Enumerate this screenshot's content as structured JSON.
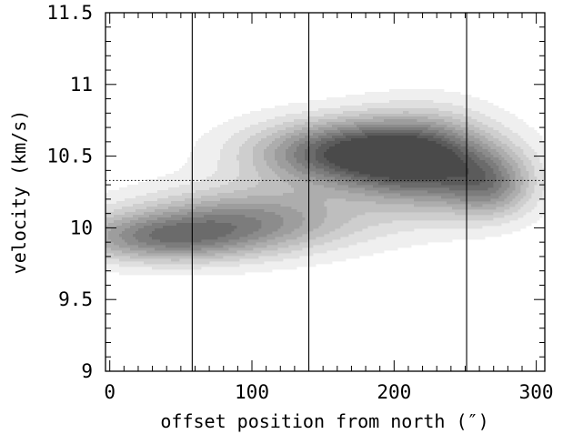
{
  "chart_data": {
    "type": "contour",
    "xlabel": "offset position from north (″)",
    "ylabel": "velocity (km/s)",
    "xlim": [
      -3,
      306
    ],
    "ylim": [
      9.0,
      11.5
    ],
    "x_ticks": [
      0,
      100,
      200,
      300
    ],
    "x_tick_labels": [
      "0",
      "100",
      "200",
      "300"
    ],
    "x_minor_step": 10,
    "y_ticks": [
      9.0,
      9.5,
      10.0,
      10.5,
      11.0,
      11.5
    ],
    "y_tick_labels": [
      "9",
      "9.5",
      "10",
      "10.5",
      "11",
      "11.5"
    ],
    "y_minor_step": 0.1,
    "vertical_lines_x": [
      58,
      140,
      251
    ],
    "horizontal_dotted_line_y": 10.33,
    "contour_levels": 11,
    "contour_fill_gray_range": [
      "#efefef",
      "#4a4a4a"
    ],
    "grid": false,
    "legend": "none",
    "peaks": [
      {
        "x": 35,
        "y": 9.93,
        "sx": 45,
        "sy": 0.12,
        "a": 0.64
      },
      {
        "x": 100,
        "y": 10.06,
        "sx": 55,
        "sy": 0.16,
        "a": 0.62
      },
      {
        "x": 170,
        "y": 10.52,
        "sx": 48,
        "sy": 0.16,
        "a": 1.0
      },
      {
        "x": 222,
        "y": 10.45,
        "sx": 35,
        "sy": 0.23,
        "a": 0.74
      },
      {
        "x": 268,
        "y": 10.3,
        "sx": 22,
        "sy": 0.16,
        "a": 0.55
      }
    ]
  }
}
